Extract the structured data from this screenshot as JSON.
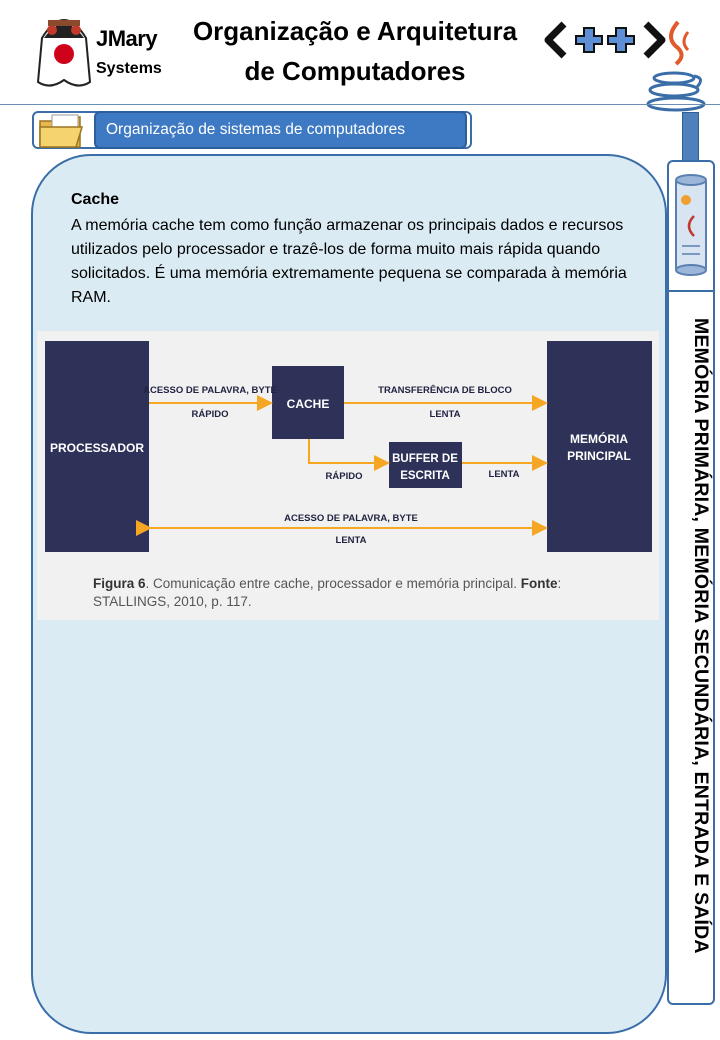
{
  "header": {
    "brand_line1": "JMary",
    "brand_line2": "Systems",
    "title_line1": "Organização e Arquitetura",
    "title_line2": "de Computadores"
  },
  "section": {
    "title": "Organização de sistemas de computadores"
  },
  "content": {
    "heading": "Cache",
    "paragraph": "A memória cache tem como função armazenar os principais dados e recursos utilizados pelo processador e trazê-los de forma muito mais rápida quando solicitados. É uma memória extremamente pequena se comparada à memória RAM."
  },
  "diagram": {
    "processor": "PROCESSADOR",
    "cache": "CACHE",
    "buffer_line1": "BUFFER DE",
    "buffer_line2": "ESCRITA",
    "memory_line1": "MEMÓRIA",
    "memory_line2": "PRINCIPAL",
    "arrow_proc_cache_top": "ACESSO DE PALAVRA, BYTE",
    "arrow_proc_cache_bottom": "RÁPIDO",
    "arrow_cache_mem_top": "TRANSFERÊNCIA DE BLOCO",
    "arrow_cache_mem_bottom": "LENTA",
    "arrow_cache_buffer": "RÁPIDO",
    "arrow_buffer_mem": "LENTA",
    "arrow_proc_mem_top": "ACESSO DE PALAVRA, BYTE",
    "arrow_proc_mem_bottom": "LENTA",
    "colors": {
      "box": "#2e3258",
      "arrow": "#f5a623",
      "text": "#ffffff",
      "label": "#1f2240"
    }
  },
  "caption": {
    "label": "Figura 6",
    "text": ". Comunicação entre cache, processador e memória principal. ",
    "source_label": "Fonte",
    "source_text": ": STALLINGS, 2010, p. 117."
  },
  "sidebar": {
    "vertical_title": "MEMÓRIA PRIMÁRIA, MEMÓRIA SECUNDÁRIA, ENTRADA E SAÍDA"
  },
  "icons": {
    "logo": "jmary-mascot-logo",
    "cpp": "cpp-logo-icon",
    "java": "java-coffee-icon",
    "folder": "folder-icon",
    "document": "document-scroll-icon"
  },
  "colors": {
    "accent": "#3e7ac3",
    "border": "#3b6ea8",
    "panel": "#dbebf3"
  }
}
